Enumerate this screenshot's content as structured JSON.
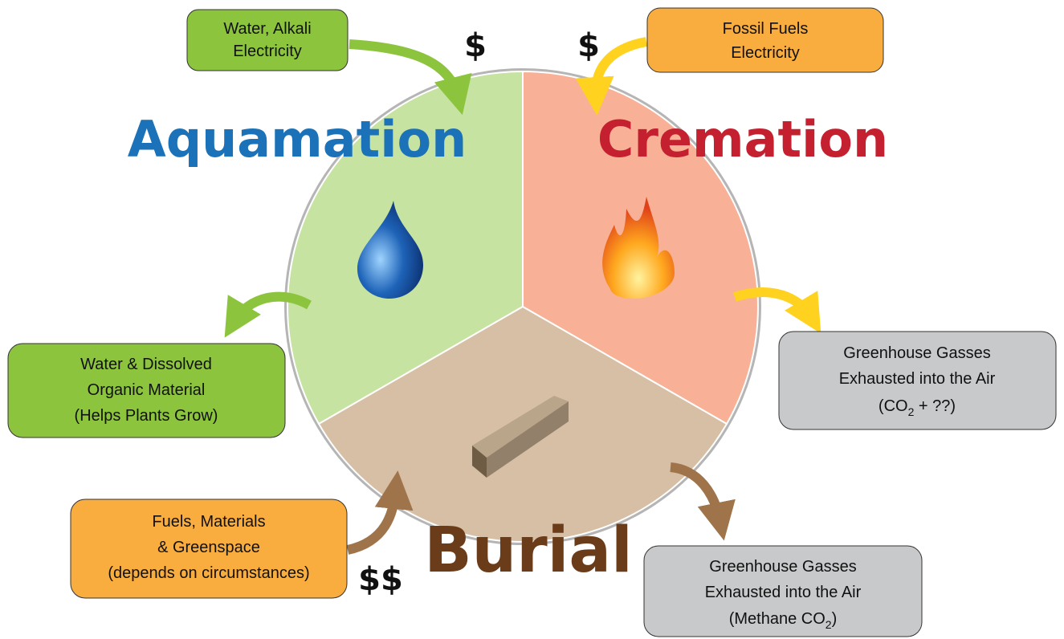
{
  "sections": {
    "aquamation": "Aquamation",
    "cremation": "Cremation",
    "burial": "Burial"
  },
  "inputs": [
    {
      "lines": [
        "Water, Alkali",
        "Electricity"
      ],
      "cost": "$"
    },
    {
      "lines": [
        "Fossil Fuels",
        "Electricity"
      ],
      "cost": "$"
    },
    {
      "lines": [
        "Fuels, Materials",
        "& Greenspace",
        "(depends on circumstances)"
      ],
      "cost": "$$"
    }
  ],
  "outputs": [
    {
      "lines": [
        "Water & Dissolved",
        "Organic Material",
        "(Helps Plants Grow)"
      ]
    },
    {
      "lines": [
        "Greenhouse Gasses",
        "Exhausted into the Air",
        [
          "(CO",
          "2",
          " + ??)"
        ]
      ]
    },
    {
      "lines": [
        "Greenhouse Gasses",
        "Exhausted into the Air",
        [
          "(Methane CO",
          "2",
          ")"
        ]
      ]
    }
  ]
}
